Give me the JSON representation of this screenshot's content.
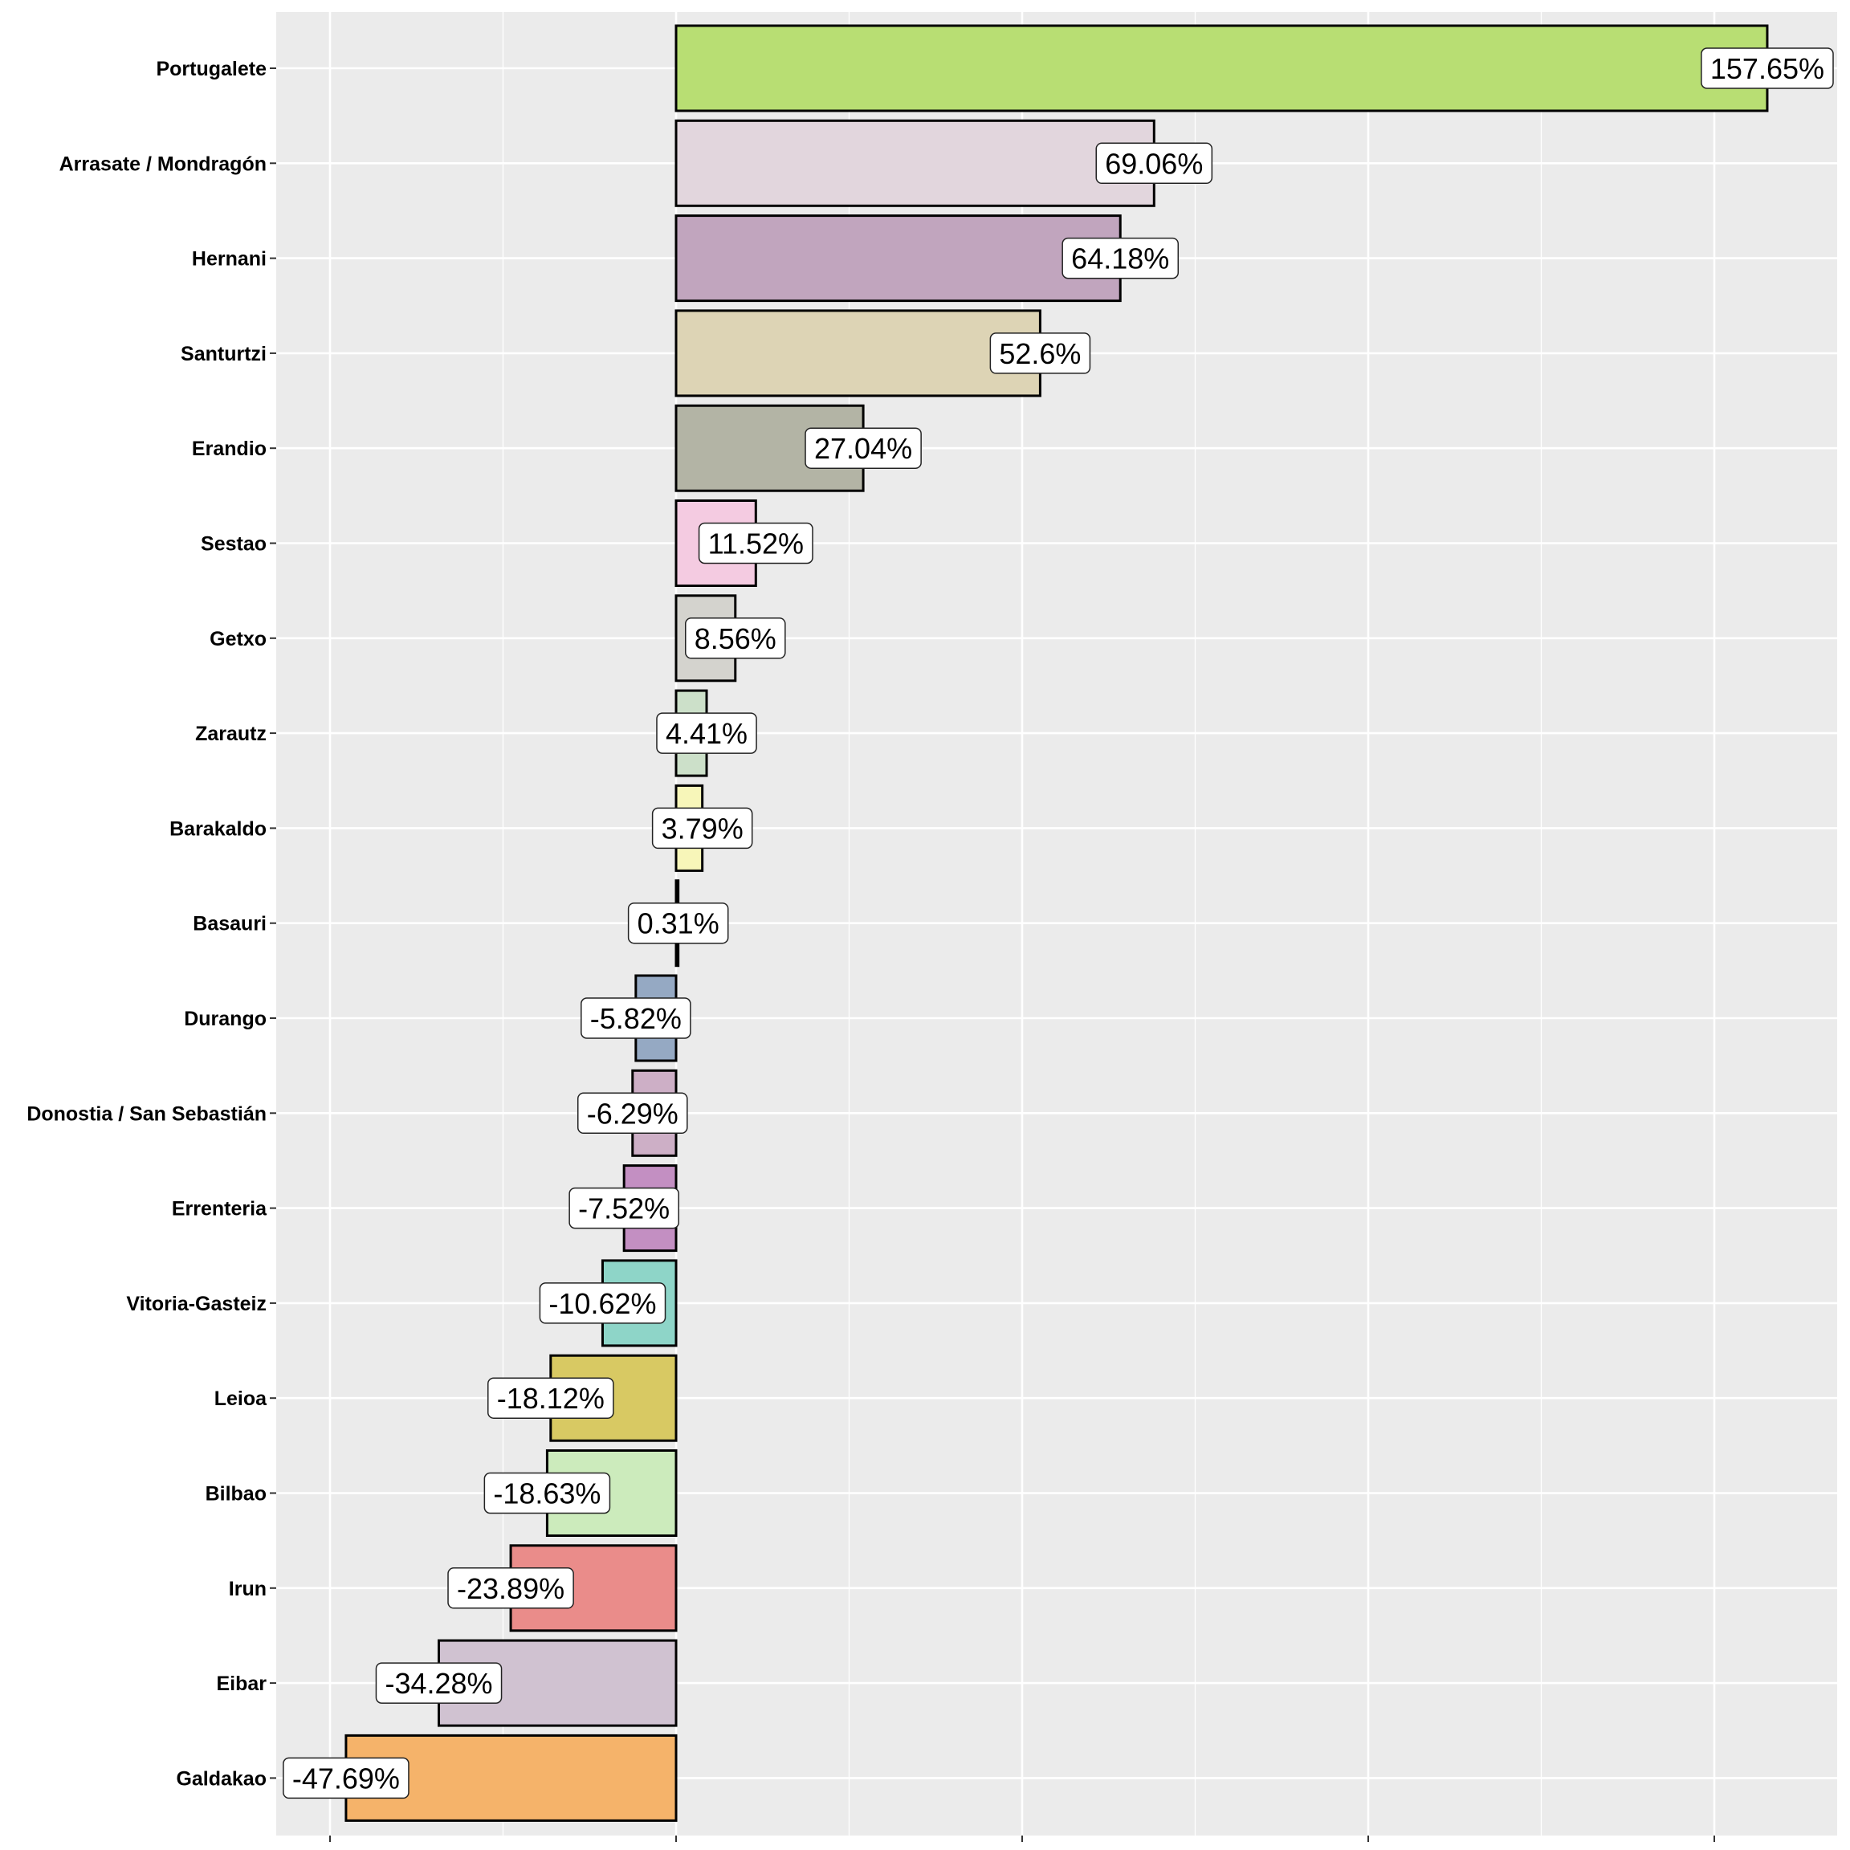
{
  "chart_data": {
    "type": "bar",
    "orientation": "horizontal",
    "title": "",
    "xlabel": "",
    "ylabel": "",
    "xlim": [
      -55,
      175
    ],
    "x_major_ticks": [
      -50,
      0,
      50,
      100,
      150
    ],
    "x_minor_gridlines": [
      -25,
      25,
      75,
      125
    ],
    "x_tick_labels_shown": false,
    "grid": true,
    "legend": "none",
    "bar_outline_color": "#000000",
    "panel_background": "#EBEBEB",
    "categories": [
      "Portugalete",
      "Arrasate / Mondragón",
      "Hernani",
      "Santurtzi",
      "Erandio",
      "Sestao",
      "Getxo",
      "Zarautz",
      "Barakaldo",
      "Basauri",
      "Durango",
      "Donostia / San Sebastián",
      "Errenteria",
      "Vitoria-Gasteiz",
      "Leioa",
      "Bilbao",
      "Irun",
      "Eibar",
      "Galdakao"
    ],
    "values": [
      157.65,
      69.06,
      64.18,
      52.6,
      27.04,
      11.52,
      8.56,
      4.41,
      3.79,
      0.31,
      -5.82,
      -6.29,
      -7.52,
      -10.62,
      -18.12,
      -18.63,
      -23.89,
      -34.28,
      -47.69
    ],
    "labels": [
      "157.65%",
      "69.06%",
      "64.18%",
      "52.6%",
      "27.04%",
      "11.52%",
      "8.56%",
      "4.41%",
      "3.79%",
      "0.31%",
      "-5.82%",
      "-6.29%",
      "-7.52%",
      "-10.62%",
      "-18.12%",
      "-18.63%",
      "-23.89%",
      "-34.28%",
      "-47.69%"
    ],
    "colors": [
      "#B8DE73",
      "#E2D6DD",
      "#C1A5BE",
      "#DDD4B5",
      "#B3B4A5",
      "#F4CBE1",
      "#D4D3CE",
      "#CCE0C9",
      "#F7F6B9",
      "#1A1A1A",
      "#95A9C3",
      "#CDAFC6",
      "#C38FC2",
      "#8ED5C8",
      "#D8C963",
      "#CCEBBC",
      "#EA8C8A",
      "#D0C2D1",
      "#F5B36A"
    ]
  }
}
